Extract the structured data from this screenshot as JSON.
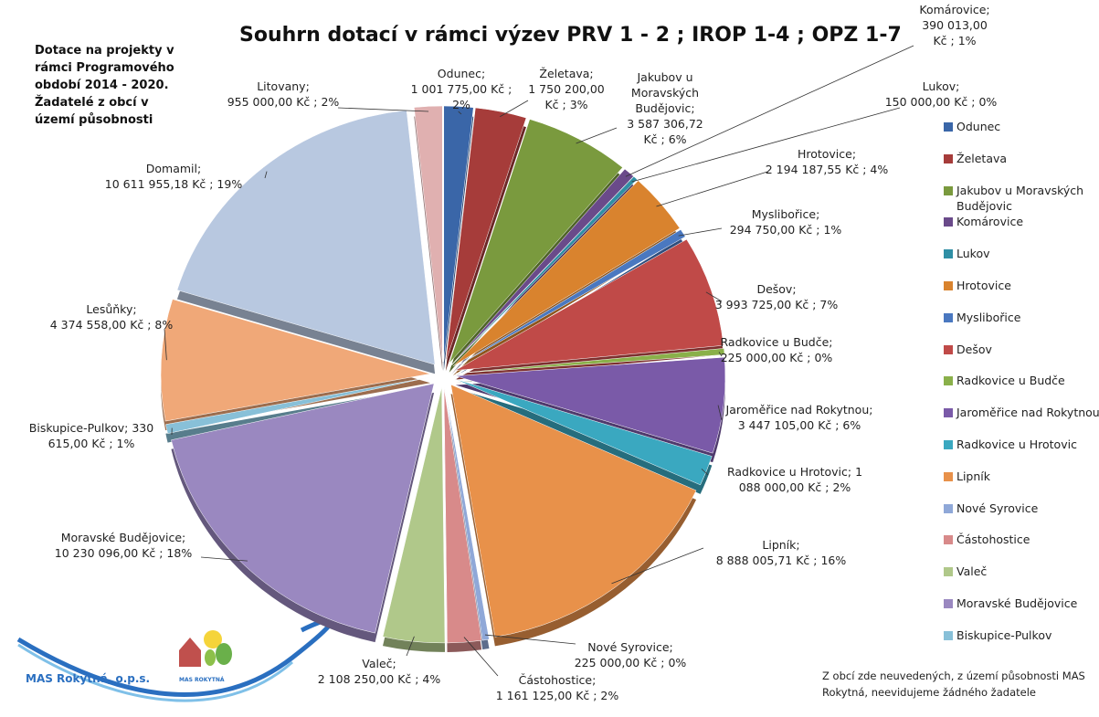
{
  "chart_data": {
    "type": "pie",
    "title": "Souhrn dotací v rámci výzev PRV 1 - 2 ; IROP 1-4 ; OPZ 1-7",
    "annotations": [
      "Dotace na projekty v rámci Programového období 2014 - 2020. Žadatelé z obcí v území působnosti",
      "Z obcí zde neuvedených, z území působnosti MAS Rokytná, neevidujeme žádného žadatele",
      "MAS Rokytná, o.p.s.",
      "MAS ROKYTNÁ"
    ],
    "categories": [
      "Odunec",
      "Želetava",
      "Jakubov u Moravských Budějovic",
      "Komárovice",
      "Lukov",
      "Hrotovice",
      "Myslibořice",
      "Dešov",
      "Radkovice u Budče",
      "Jaroměřice nad Rokytnou",
      "Radkovice u Hrotovic",
      "Lipník",
      "Nové Syrovice",
      "Částohostice",
      "Valeč",
      "Moravské Budějovice",
      "Biskupice-Pulkov",
      "Lesůňky",
      "Domamil",
      "Litovany"
    ],
    "values": [
      1001775,
      1750200,
      3587306.72,
      390013,
      150000,
      2194187.55,
      294750,
      3993725,
      225000,
      3447105,
      1088000,
      8888005.71,
      225000,
      1161125,
      2108250,
      10230096,
      330615,
      4374558,
      10611955.18,
      955000
    ],
    "value_labels": [
      "Odunec;\n1 001 775,00 Kč ;\n2%",
      "Želetava;\n1 750 200,00\nKč ; 3%",
      "Jakubov u\nMoravských\nBudějovic;\n3 587 306,72\nKč ; 6%",
      "Komárovice;\n390 013,00\nKč ; 1%",
      "Lukov;\n150 000,00 Kč ; 0%",
      "Hrotovice;\n2 194 187,55 Kč ; 4%",
      "Myslibořice;\n294 750,00 Kč ; 1%",
      "Dešov;\n3 993 725,00 Kč ; 7%",
      "Radkovice u Budče;\n225 000,00 Kč ; 0%",
      "Jaroměřice nad Rokytnou;\n3 447 105,00 Kč ; 6%",
      "Radkovice u Hrotovic;  1\n088 000,00 Kč ; 2%",
      "Lipník;\n8 888 005,71 Kč ; 16%",
      "Nové Syrovice;\n225 000,00 Kč ; 0%",
      "Částohostice;\n1 161 125,00 Kč ; 2%",
      "Valeč;\n2 108 250,00 Kč ; 4%",
      "Moravské Budějovice;\n10 230 096,00 Kč ; 18%",
      "Biskupice-Pulkov;  330\n615,00 Kč ; 1%",
      "Lesůňky;\n4 374 558,00 Kč ; 8%",
      "Domamil;\n10 611 955,18 Kč ; 19%",
      "Litovany;\n955 000,00 Kč ; 2%"
    ],
    "colors": [
      "#3a66a8",
      "#a63c3a",
      "#7a9a3e",
      "#6a4a8a",
      "#2f8fa5",
      "#d9832e",
      "#4a78c0",
      "#c04a48",
      "#8ab04a",
      "#7a5aa8",
      "#3aa8c0",
      "#e8914a",
      "#8fa8d8",
      "#d88a8a",
      "#b0c88a",
      "#9a88c0",
      "#88c0d8",
      "#f0a878",
      "#b8c8e0",
      "#e0b0b0"
    ],
    "legend": "right"
  }
}
